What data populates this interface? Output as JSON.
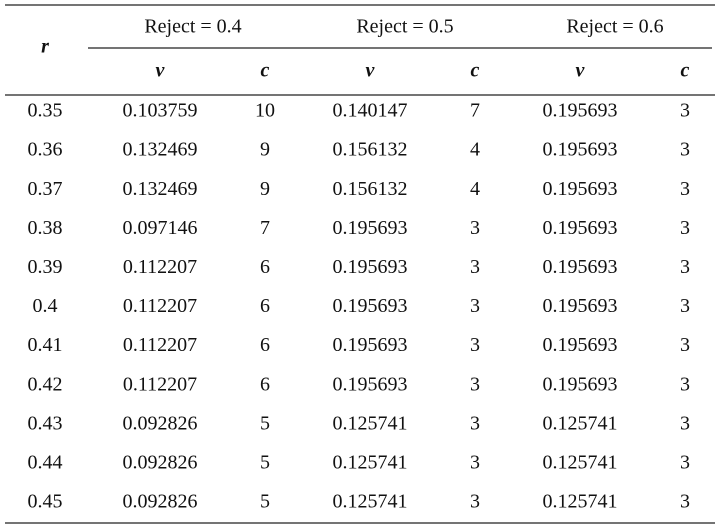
{
  "table": {
    "header": {
      "row_label": "r",
      "groups": [
        "Reject = 0.4",
        "Reject = 0.5",
        "Reject = 0.6"
      ],
      "subheaders": [
        "v",
        "c",
        "v",
        "c",
        "v",
        "c"
      ]
    },
    "rows": [
      [
        "0.35",
        "0.103759",
        "10",
        "0.140147",
        "7",
        "0.195693",
        "3"
      ],
      [
        "0.36",
        "0.132469",
        "9",
        "0.156132",
        "4",
        "0.195693",
        "3"
      ],
      [
        "0.37",
        "0.132469",
        "9",
        "0.156132",
        "4",
        "0.195693",
        "3"
      ],
      [
        "0.38",
        "0.097146",
        "7",
        "0.195693",
        "3",
        "0.195693",
        "3"
      ],
      [
        "0.39",
        "0.112207",
        "6",
        "0.195693",
        "3",
        "0.195693",
        "3"
      ],
      [
        "0.4",
        "0.112207",
        "6",
        "0.195693",
        "3",
        "0.195693",
        "3"
      ],
      [
        "0.41",
        "0.112207",
        "6",
        "0.195693",
        "3",
        "0.195693",
        "3"
      ],
      [
        "0.42",
        "0.112207",
        "6",
        "0.195693",
        "3",
        "0.195693",
        "3"
      ],
      [
        "0.43",
        "0.092826",
        "5",
        "0.125741",
        "3",
        "0.125741",
        "3"
      ],
      [
        "0.44",
        "0.092826",
        "5",
        "0.125741",
        "3",
        "0.125741",
        "3"
      ],
      [
        "0.45",
        "0.092826",
        "5",
        "0.125741",
        "3",
        "0.125741",
        "3"
      ]
    ]
  }
}
